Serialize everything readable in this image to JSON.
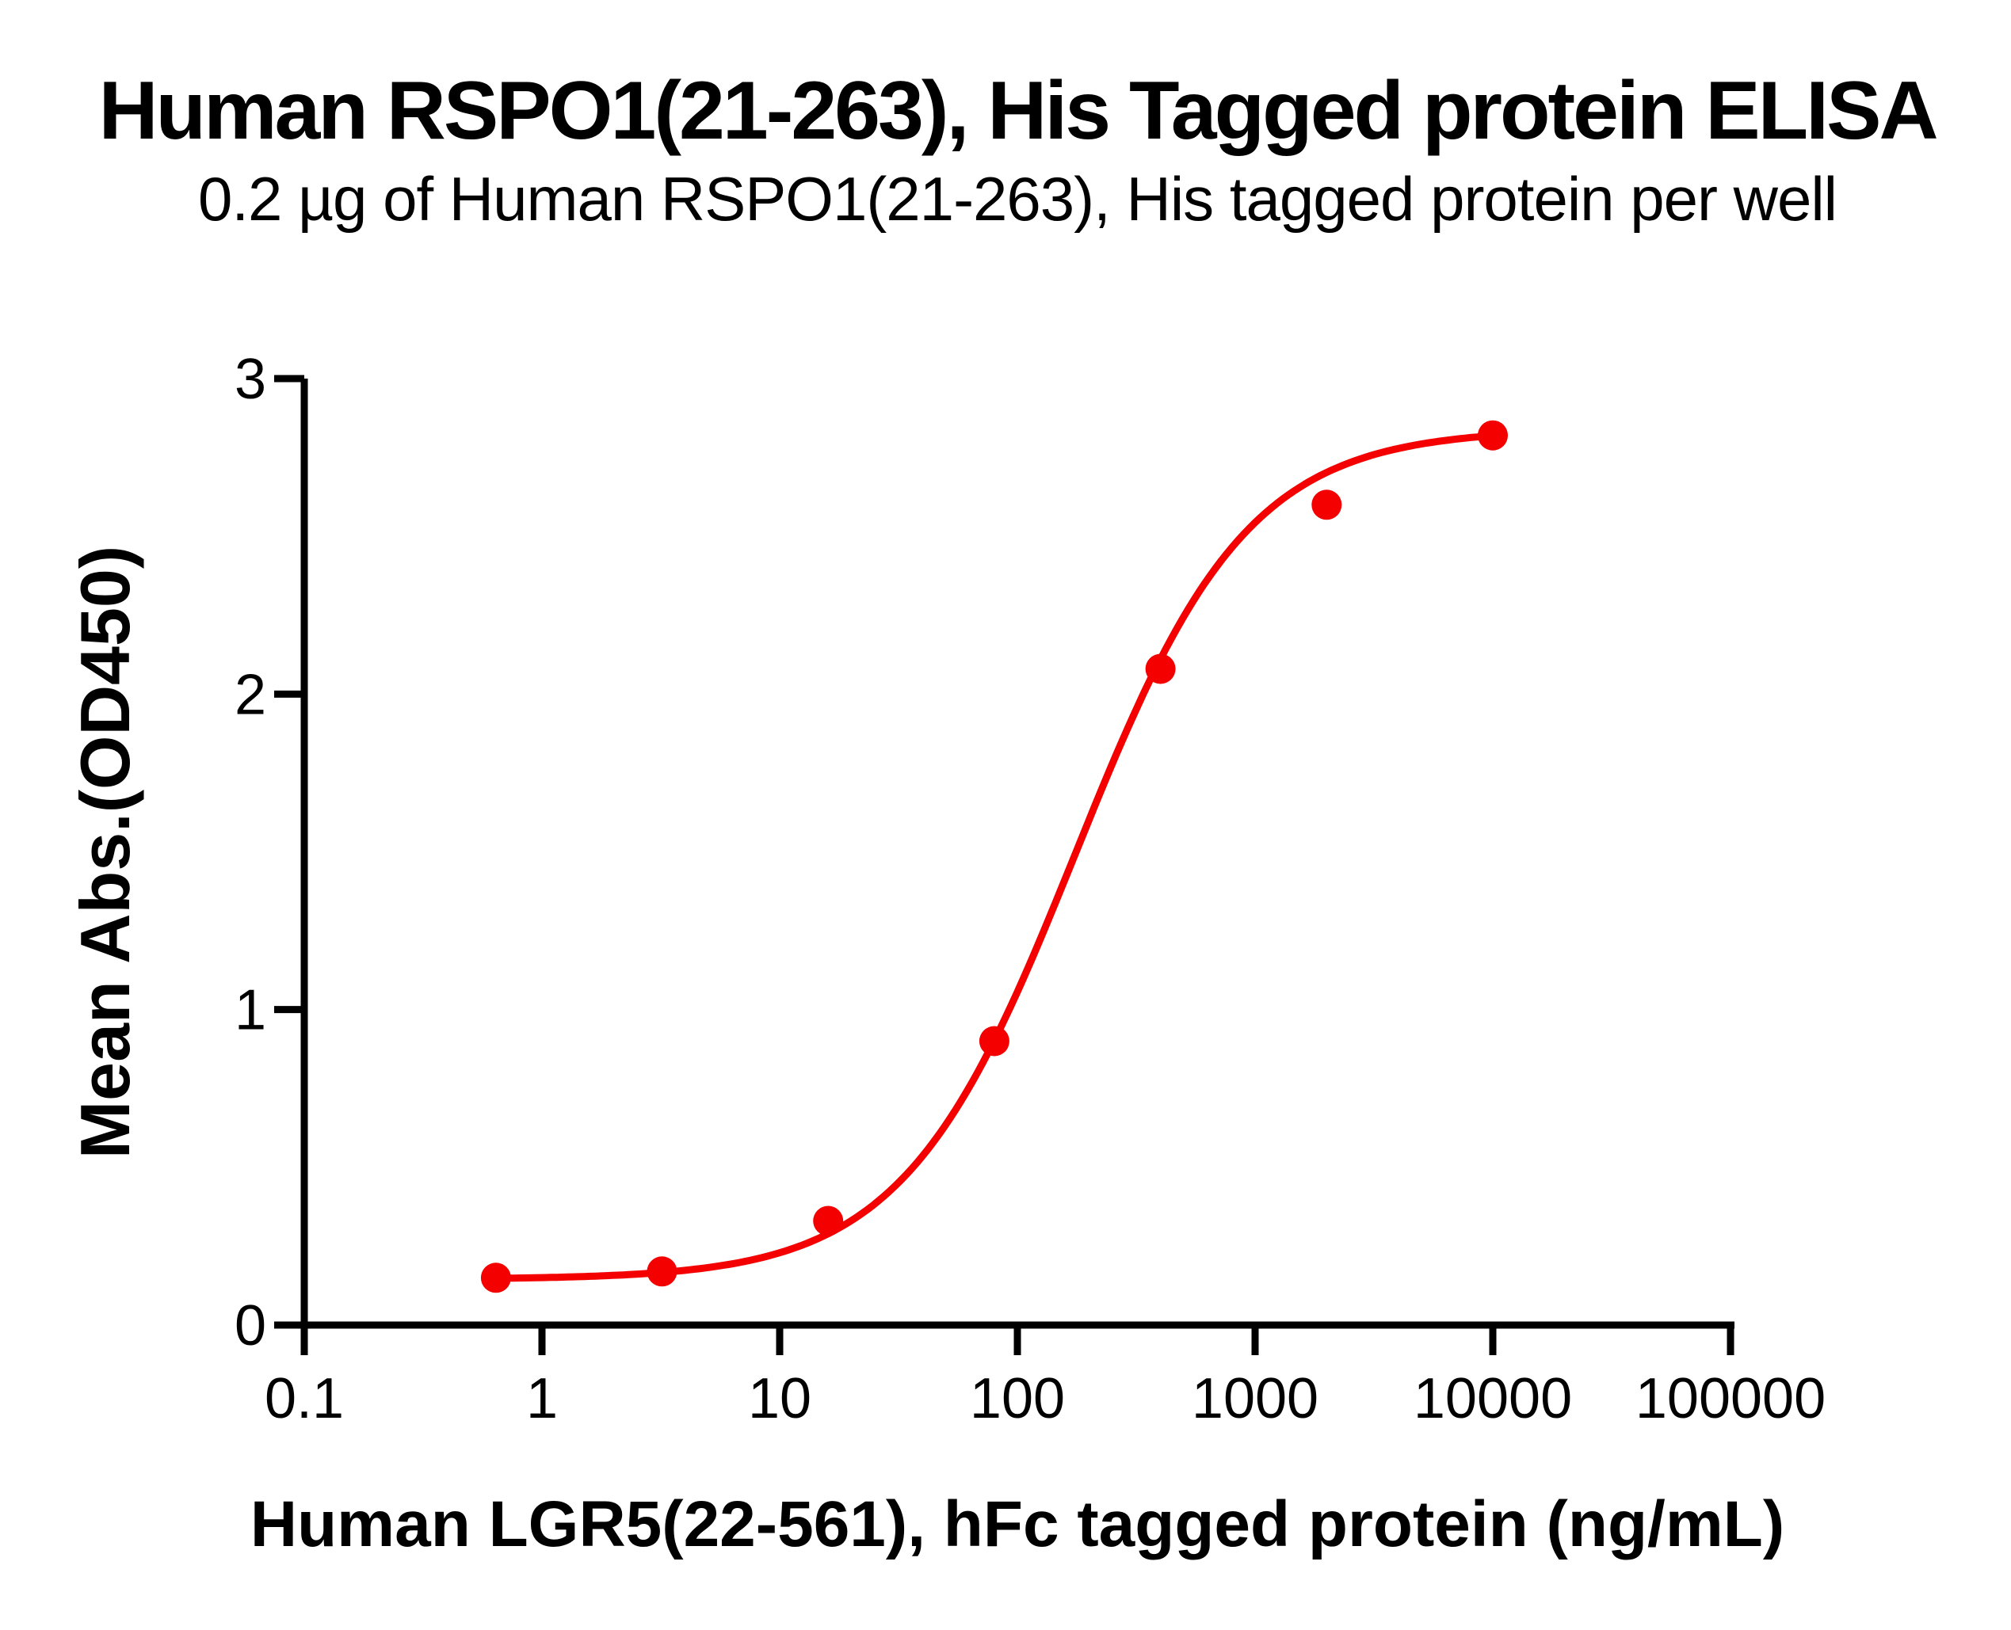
{
  "page": {
    "background": "#FFFFFF",
    "text_color": "#000000"
  },
  "chart_data": {
    "type": "scatter",
    "title": "Human RSPO1(21-263), His Tagged protein ELISA",
    "subtitle": "0.2 µg of Human RSPO1(21-263), His tagged protein per well",
    "xlabel": "Human LGR5(22-561), hFc tagged protein (ng/mL)",
    "ylabel": "Mean Abs.(OD450)",
    "x_scale": "log10",
    "xlim": [
      0.1,
      100000
    ],
    "ylim": [
      0,
      3
    ],
    "x_ticks": [
      0.1,
      1,
      10,
      100,
      1000,
      10000,
      100000
    ],
    "x_tick_labels": [
      "0.1",
      "1",
      "10",
      "100",
      "1000",
      "10000",
      "100000"
    ],
    "y_ticks": [
      0,
      1,
      2,
      3
    ],
    "y_tick_labels": [
      "0",
      "1",
      "2",
      "3"
    ],
    "grid": false,
    "legend": "none",
    "axis_color": "#000000",
    "series": [
      {
        "name": "Human RSPO1(21-263), His tagged protein",
        "color": "#F40000",
        "marker": "circle",
        "points": [
          {
            "x": 0.64,
            "y": 0.15
          },
          {
            "x": 3.2,
            "y": 0.17
          },
          {
            "x": 16,
            "y": 0.33
          },
          {
            "x": 80,
            "y": 0.9
          },
          {
            "x": 400,
            "y": 2.08
          },
          {
            "x": 2000,
            "y": 2.6
          },
          {
            "x": 10000,
            "y": 2.82
          }
        ],
        "fit_curve": {
          "model": "4PL",
          "bottom": 0.145,
          "top": 2.84,
          "ec50": 175,
          "hill": 1.2,
          "x_start": 0.64,
          "x_end": 10000
        }
      }
    ]
  }
}
